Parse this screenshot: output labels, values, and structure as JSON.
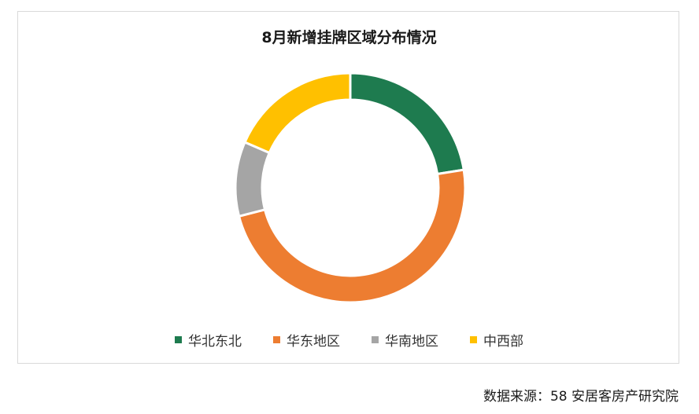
{
  "chart_data": {
    "type": "pie",
    "subtype": "donut",
    "title": "8月新增挂牌区域分布情况",
    "categories": [
      "华北东北",
      "华东地区",
      "华南地区",
      "中西部"
    ],
    "values": [
      22.5,
      48.5,
      10.5,
      18.5
    ],
    "unit": "%",
    "colors": [
      "#1e7b4f",
      "#ed7d31",
      "#a5a5a5",
      "#ffc000"
    ],
    "legend_position": "bottom"
  },
  "source_note": "数据来源：58 安居客房产研究院"
}
